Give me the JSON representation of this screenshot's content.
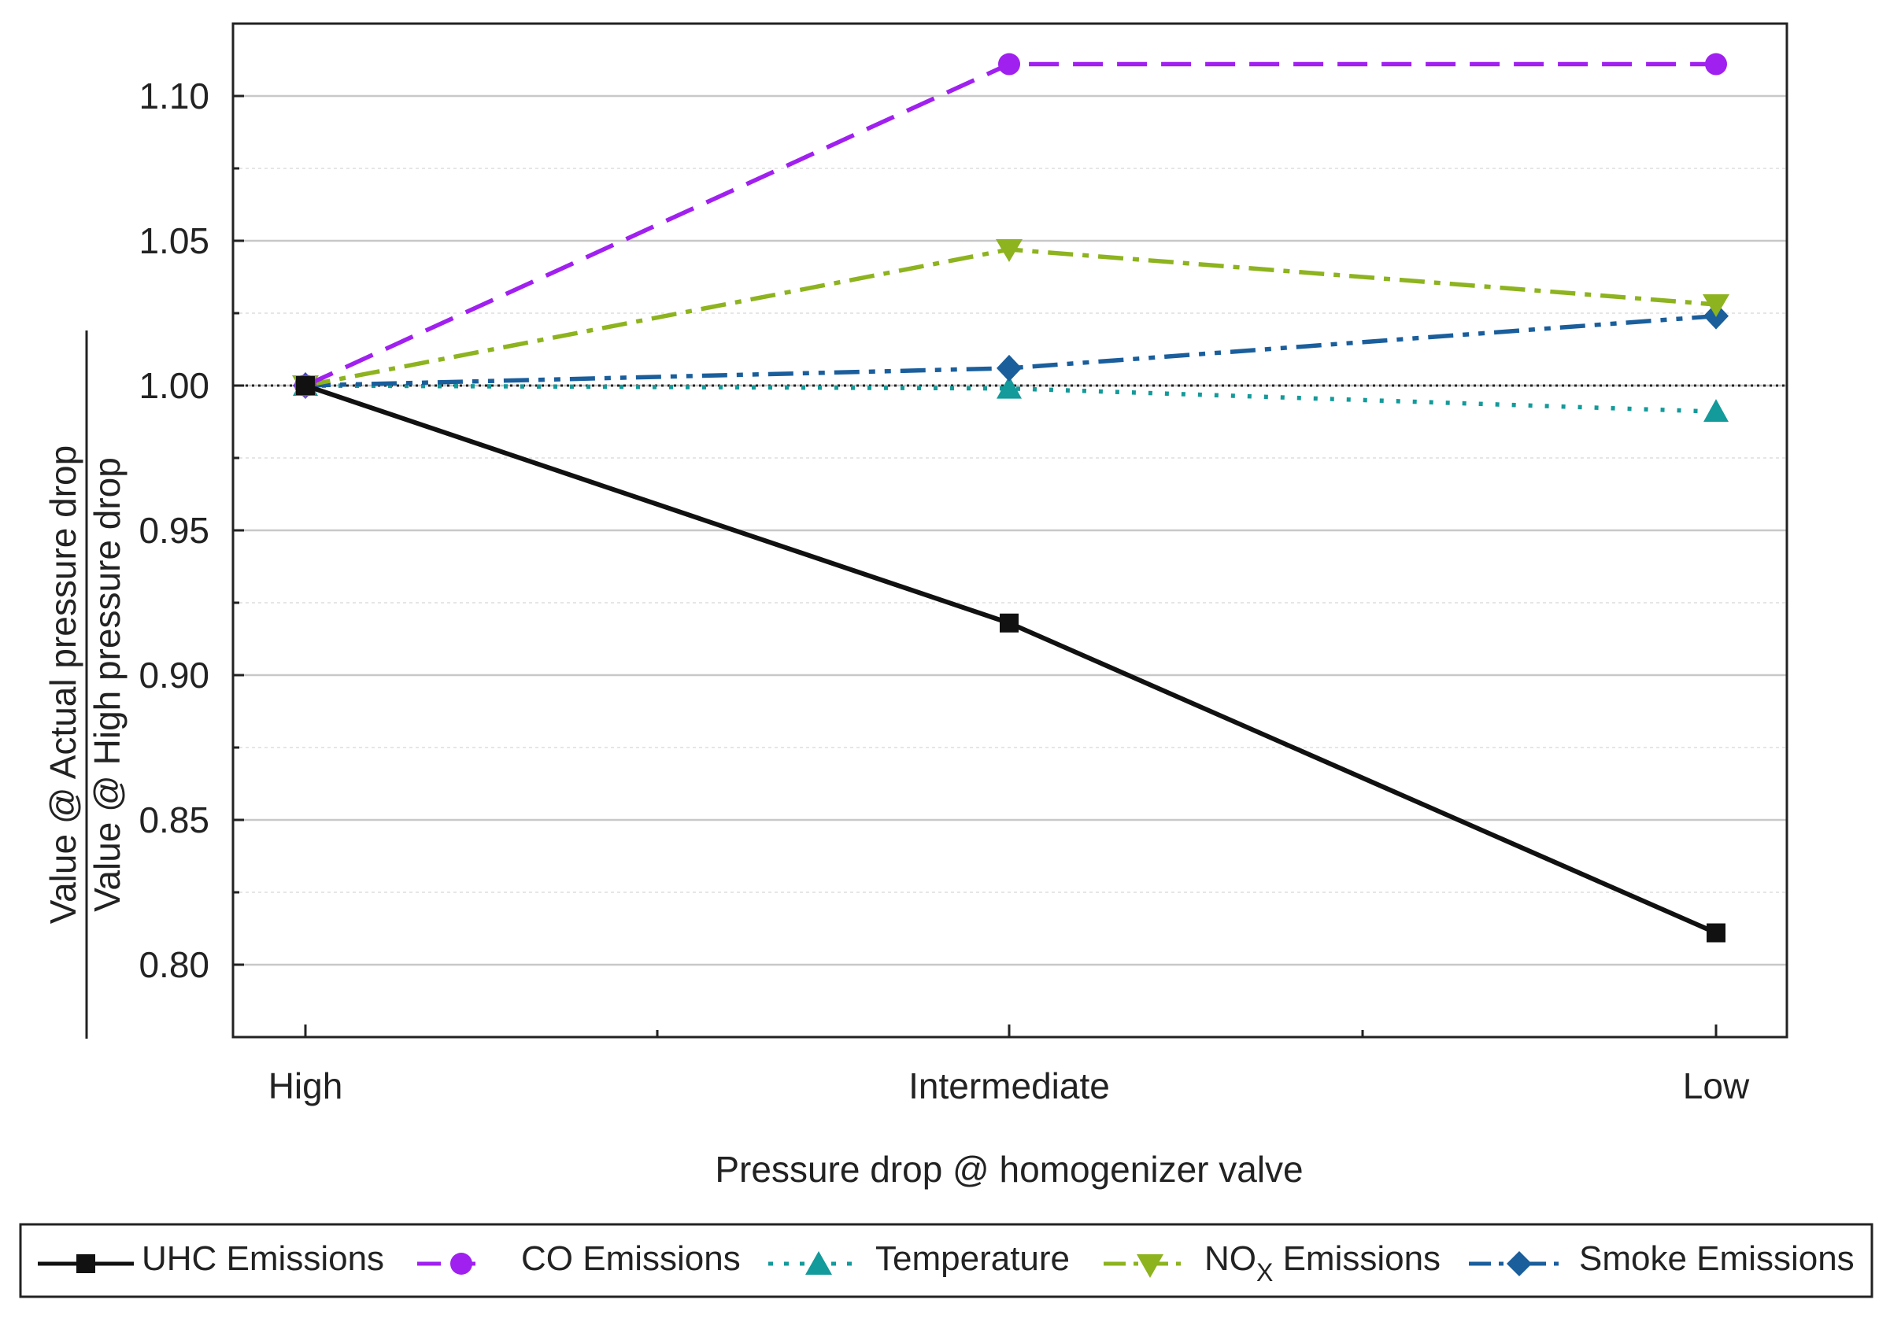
{
  "chart_data": {
    "type": "line",
    "categories": [
      "High",
      "Intermediate",
      "Low"
    ],
    "xlabel": "Pressure drop @ homogenizer valve",
    "ylabel": {
      "numerator": "Value @ Actual pressure drop",
      "denominator": "Value @ High pressure drop"
    },
    "ylim": [
      0.775,
      1.125
    ],
    "yticks": [
      0.8,
      0.85,
      0.9,
      0.95,
      1.0,
      1.05,
      1.1
    ],
    "ytick_labels": [
      "0.80",
      "0.85",
      "0.90",
      "0.95",
      "1.00",
      "1.05",
      "1.10"
    ],
    "reference_line": 1.0,
    "grid": true,
    "legend_position": "bottom",
    "series": [
      {
        "name": "UHC Emissions",
        "values": [
          1.0,
          0.918,
          0.811
        ],
        "color": "#111111",
        "line_style": "solid",
        "marker": "square"
      },
      {
        "name": "CO Emissions",
        "values": [
          1.0,
          1.111,
          1.111
        ],
        "color": "#a020f0",
        "line_style": "dash",
        "marker": "circle"
      },
      {
        "name": "Temperature",
        "values": [
          1.0,
          0.999,
          0.991
        ],
        "color": "#139a9a",
        "line_style": "dot",
        "marker": "triangle-up"
      },
      {
        "name": "NOx Emissions",
        "name_parts": [
          "NO",
          "X",
          " Emissions"
        ],
        "values": [
          1.0,
          1.047,
          1.028
        ],
        "color": "#8db31e",
        "line_style": "dashdot",
        "marker": "triangle-down"
      },
      {
        "name": "Smoke Emissions",
        "values": [
          1.0,
          1.006,
          1.024
        ],
        "color": "#1a5e9c",
        "line_style": "dashdotdot",
        "marker": "diamond"
      }
    ]
  }
}
